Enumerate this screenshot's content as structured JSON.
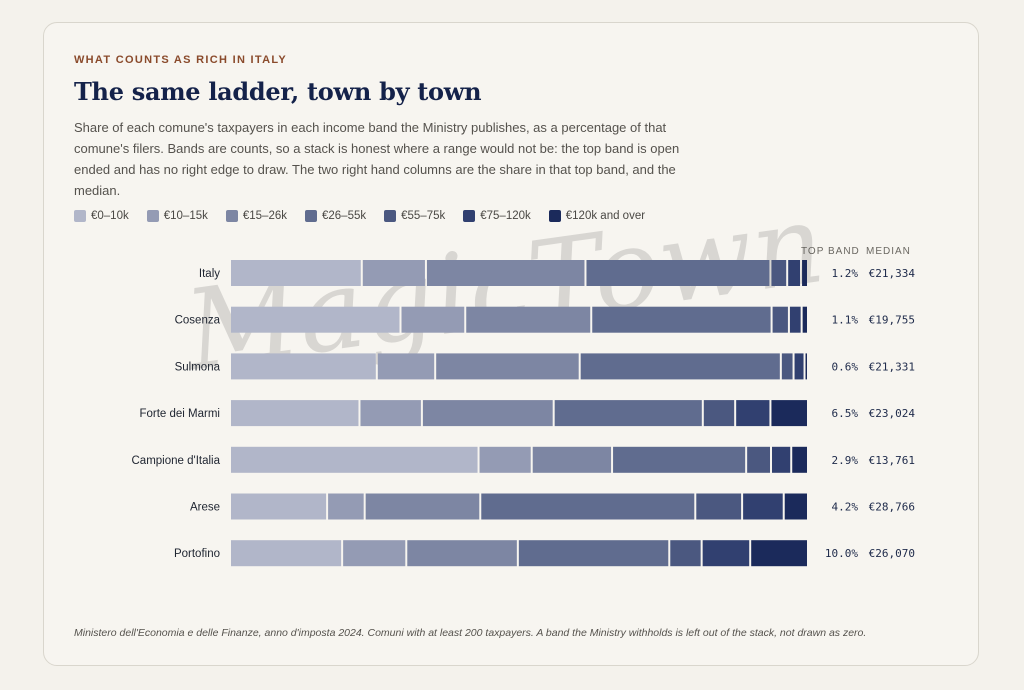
{
  "eyebrow": "WHAT COUNTS AS RICH IN ITALY",
  "title": "The same ladder, town by town",
  "subtitle": "Share of each comune's taxpayers in each income band the Ministry publishes, as a percentage of that comune's filers. Bands are counts, so a stack is honest where a range would not be: the top band is open ended and has no right edge to draw. The two right hand columns are the share in that top band, and the median.",
  "columns": {
    "top_band": "TOP BAND",
    "median": "MEDIAN"
  },
  "watermark": "MagicTown",
  "footnote": "Ministero dell'Economia e delle Finanze, anno d'imposta 2024. Comuni with at least 200 taxpayers. A band the Ministry withholds is left out of the stack, not drawn as zero.",
  "chart_data": {
    "type": "bar",
    "orientation": "horizontal",
    "stacked": true,
    "unit": "percent",
    "xlim": [
      0,
      100
    ],
    "bands": [
      {
        "name": "€0–10k",
        "color": "#b1b6c9"
      },
      {
        "name": "€10–15k",
        "color": "#949bb4"
      },
      {
        "name": "€15–26k",
        "color": "#7d86a3"
      },
      {
        "name": "€26–55k",
        "color": "#606c8f"
      },
      {
        "name": "€55–75k",
        "color": "#4b5880"
      },
      {
        "name": "€75–120k",
        "color": "#314070"
      },
      {
        "name": "€120k and over",
        "color": "#1b2a5b"
      }
    ],
    "rows": [
      {
        "name": "Italy",
        "values": [
          22.8,
          11.1,
          27.6,
          32.0,
          2.9,
          2.4,
          1.2
        ],
        "top_band": "1.2%",
        "median": "€21,334"
      },
      {
        "name": "Cosenza",
        "values": [
          29.5,
          11.2,
          21.8,
          31.2,
          3.0,
          2.2,
          1.1
        ],
        "top_band": "1.1%",
        "median": "€19,755"
      },
      {
        "name": "Sulmona",
        "values": [
          25.4,
          10.1,
          25.0,
          34.8,
          2.2,
          1.9,
          0.6
        ],
        "top_band": "0.6%",
        "median": "€21,331"
      },
      {
        "name": "Forte dei Marmi",
        "values": [
          22.4,
          10.8,
          22.8,
          25.8,
          5.6,
          6.1,
          6.5
        ],
        "top_band": "6.5%",
        "median": "€23,024"
      },
      {
        "name": "Campione d'Italia",
        "values": [
          43.0,
          9.2,
          13.9,
          23.2,
          4.3,
          3.5,
          2.9
        ],
        "top_band": "2.9%",
        "median": "€13,761"
      },
      {
        "name": "Arese",
        "values": [
          16.8,
          6.5,
          20.0,
          37.2,
          8.1,
          7.2,
          4.2
        ],
        "top_band": "4.2%",
        "median": "€28,766"
      },
      {
        "name": "Portofino",
        "values": [
          19.4,
          11.1,
          19.3,
          26.2,
          5.6,
          8.4,
          10.0
        ],
        "top_band": "10.0%",
        "median": "€26,070"
      }
    ]
  }
}
